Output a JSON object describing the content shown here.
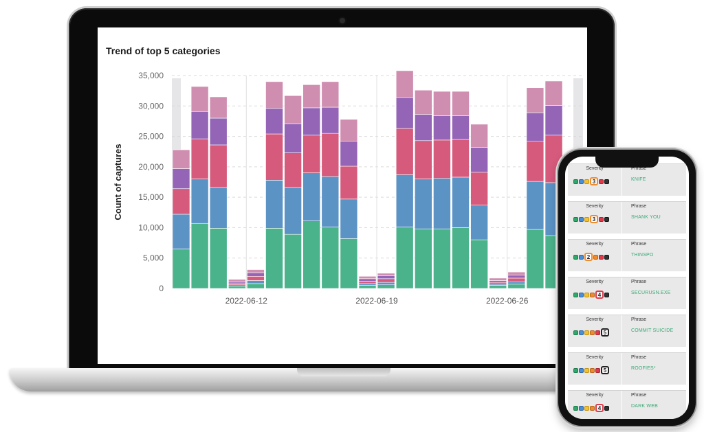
{
  "chart": {
    "title": "Trend of top 5 categories"
  },
  "chart_data": {
    "type": "bar",
    "stacked": true,
    "ylabel": "Count of captures",
    "xlabel": "",
    "ylim": [
      0,
      35000
    ],
    "yticks": [
      "0",
      "5,000",
      "10,000",
      "15,000",
      "20,000",
      "25,000",
      "30,000",
      "35,000"
    ],
    "ytick_values": [
      0,
      5000,
      10000,
      15000,
      20000,
      25000,
      30000,
      35000
    ],
    "xtick_labels": [
      "2022-06-12",
      "2022-06-19",
      "2022-06-26"
    ],
    "xtick_after_bar": [
      3,
      10,
      17
    ],
    "grid": "dashed horizontal",
    "series_colors": [
      "#4bb38c",
      "#5b93c5",
      "#d65a7c",
      "#9464b6",
      "#cf8eb0"
    ],
    "series": [
      {
        "values": [
          6500,
          10700,
          9900,
          400,
          800,
          9900,
          8900,
          11100,
          10100,
          8200,
          500,
          600,
          10100,
          9800,
          9800,
          10000,
          8000,
          500,
          700,
          9700,
          8700
        ]
      },
      {
        "values": [
          5700,
          7300,
          6700,
          200,
          500,
          7900,
          7700,
          7900,
          8300,
          6500,
          300,
          400,
          8600,
          8200,
          8300,
          8300,
          5700,
          200,
          400,
          7900,
          8700
        ]
      },
      {
        "values": [
          4200,
          6600,
          7000,
          300,
          700,
          7600,
          5700,
          6200,
          7100,
          5400,
          400,
          600,
          7600,
          6300,
          6300,
          6200,
          5400,
          300,
          600,
          6600,
          7800
        ]
      },
      {
        "values": [
          3300,
          4500,
          4400,
          300,
          600,
          4200,
          4800,
          4500,
          4300,
          4100,
          400,
          500,
          5100,
          4300,
          4000,
          3900,
          4100,
          300,
          500,
          4700,
          4900
        ]
      },
      {
        "values": [
          3100,
          4100,
          3500,
          300,
          500,
          4400,
          4600,
          3800,
          4200,
          3600,
          400,
          400,
          4400,
          4000,
          4000,
          4000,
          3800,
          400,
          500,
          4100,
          4000
        ]
      }
    ]
  },
  "phone": {
    "cards": [
      {
        "severity_label": "Severity",
        "phrase_label": "Phrase",
        "severity": "3",
        "phrase": "KNIFE"
      },
      {
        "severity_label": "Severity",
        "phrase_label": "Phrase",
        "severity": "3",
        "phrase": "SHANK YOU"
      },
      {
        "severity_label": "Severity",
        "phrase_label": "Phrase",
        "severity": "2",
        "phrase": "THINSPO"
      },
      {
        "severity_label": "Severity",
        "phrase_label": "Phrase",
        "severity": "4",
        "phrase": "SECURUSN.EXE"
      },
      {
        "severity_label": "Severity",
        "phrase_label": "Phrase",
        "severity": "5",
        "phrase": "COMMIT SUICIDE"
      },
      {
        "severity_label": "Severity",
        "phrase_label": "Phrase",
        "severity": "5",
        "phrase": "ROOFIES*"
      },
      {
        "severity_label": "Severity",
        "phrase_label": "Phrase",
        "severity": "4",
        "phrase": "DARK WEB"
      }
    ]
  }
}
